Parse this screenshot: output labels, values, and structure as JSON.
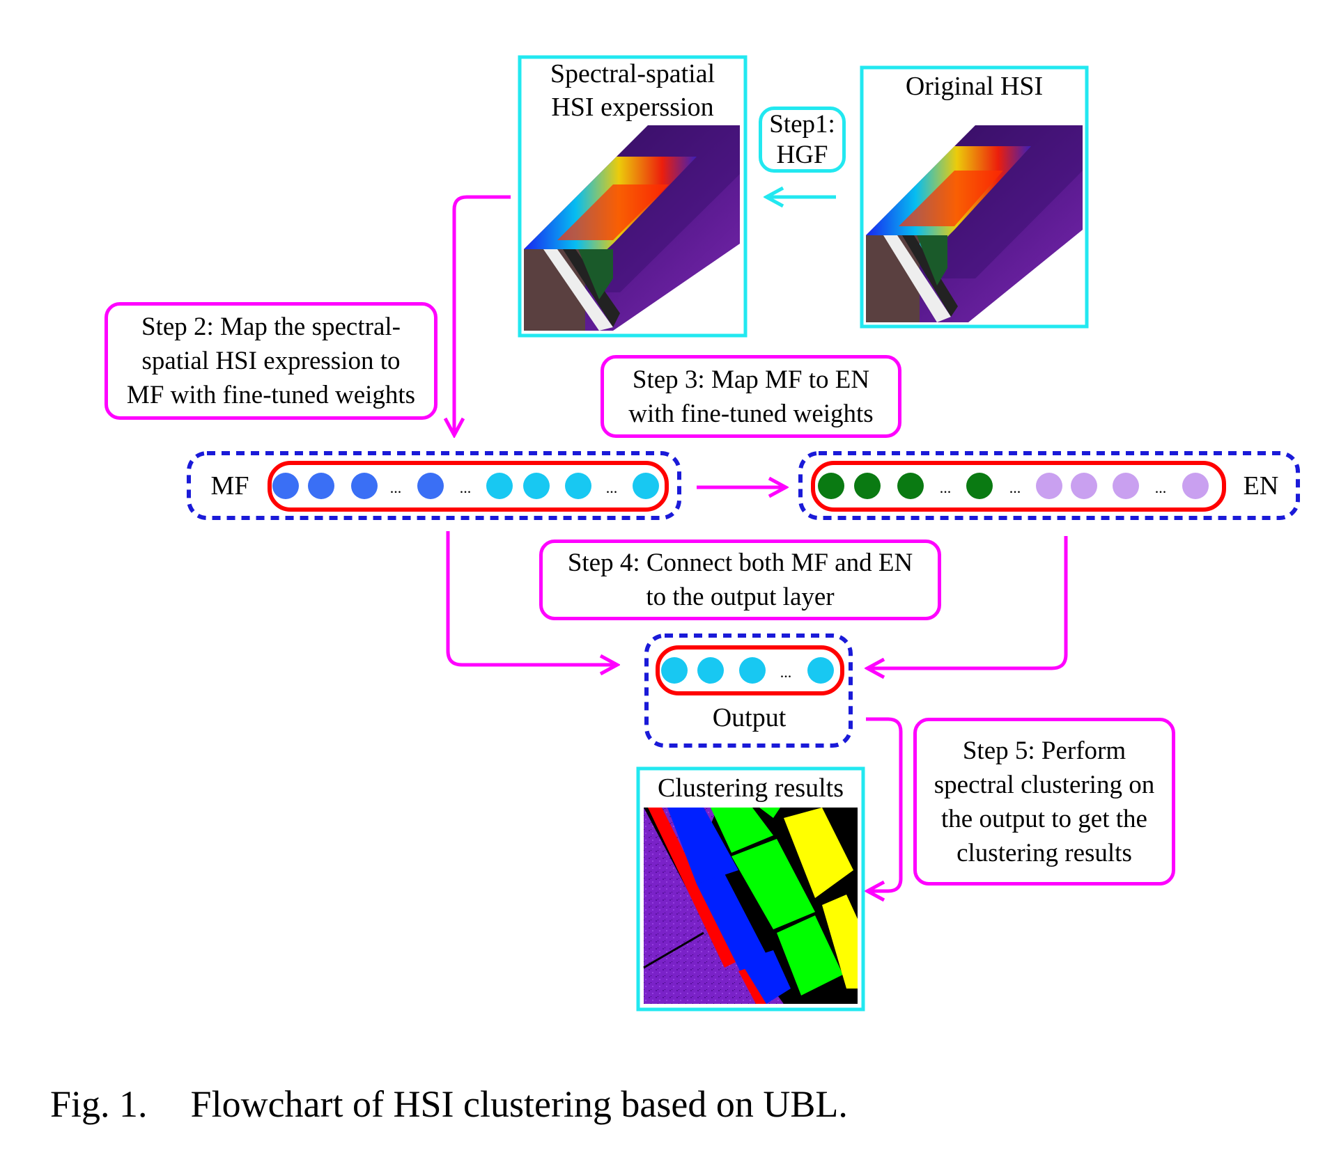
{
  "images": {
    "spectral_spatial_title": [
      "Spectral-spatial",
      "HSI experssion"
    ],
    "original_title": "Original HSI",
    "clustering_title": "Clustering results"
  },
  "steps": {
    "step1": [
      "Step1:",
      "HGF"
    ],
    "step2": [
      "Step 2: Map the spectral-",
      "spatial HSI expression to",
      "MF with fine-tuned weights"
    ],
    "step3": [
      "Step 3: Map  MF  to EN",
      "with fine-tuned weights"
    ],
    "step4": [
      "Step 4: Connect both MF and EN",
      "to the output layer"
    ],
    "step5": [
      "Step 5: Perform",
      "spectral clustering on",
      "the output to get the",
      "clustering results"
    ]
  },
  "layers": {
    "mf_label": "MF",
    "en_label": "EN",
    "output_label": "Output",
    "ellipsis": "..."
  },
  "caption": {
    "number": "Fig. 1.",
    "text": "Flowchart of HSI clustering based on UBL."
  },
  "colors": {
    "step_border": "#ff00ff",
    "image_border": "#22e8f0",
    "layer_dash": "#1a1ad8",
    "node_group_border": "#ff0000",
    "mf_node_blue": "#3a6ff5",
    "mf_node_cyan": "#18c8f2",
    "en_node_green": "#0a7a12",
    "en_node_lavender": "#c9a0f0",
    "output_node": "#18c8f2",
    "arrow": "#ff00ff"
  }
}
